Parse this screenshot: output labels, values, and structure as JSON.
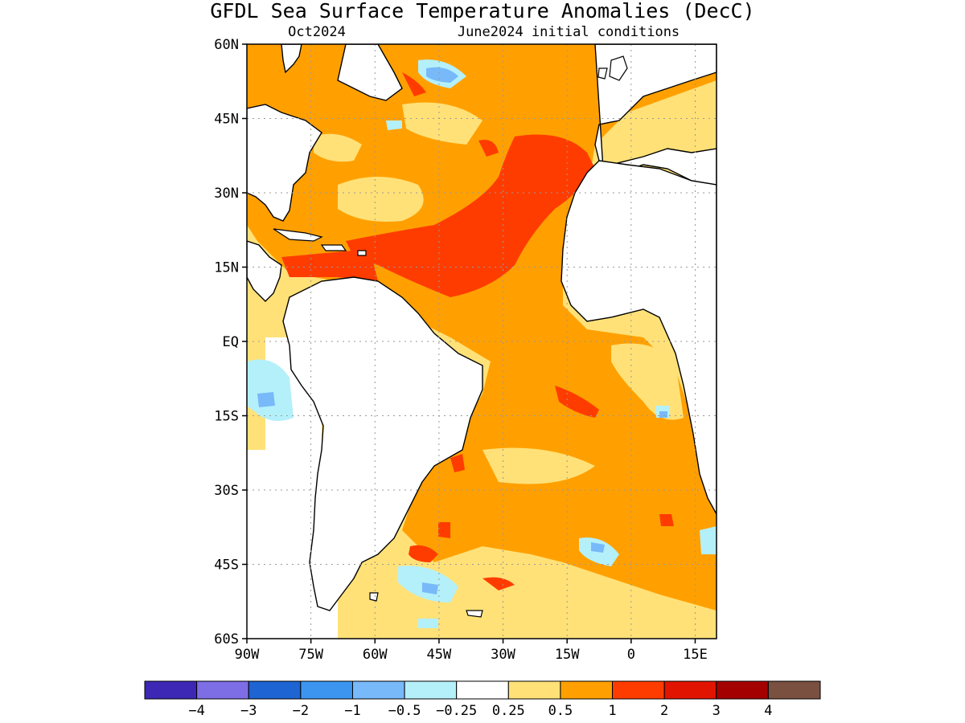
{
  "title": "GFDL Sea Surface Temperature Anomalies (DecC)",
  "subtitle_left": "Oct2024",
  "subtitle_right": "June2024 initial conditions",
  "map": {
    "lon_range": [
      -90,
      20
    ],
    "lat_range": [
      -60,
      60
    ],
    "lat_labels": [
      {
        "value": 60,
        "label": "60N"
      },
      {
        "value": 45,
        "label": "45N"
      },
      {
        "value": 30,
        "label": "30N"
      },
      {
        "value": 15,
        "label": "15N"
      },
      {
        "value": 0,
        "label": "EQ"
      },
      {
        "value": -15,
        "label": "15S"
      },
      {
        "value": -30,
        "label": "30S"
      },
      {
        "value": -45,
        "label": "45S"
      },
      {
        "value": -60,
        "label": "60S"
      }
    ],
    "lon_labels": [
      {
        "value": -90,
        "label": "90W"
      },
      {
        "value": -75,
        "label": "75W"
      },
      {
        "value": -60,
        "label": "60W"
      },
      {
        "value": -45,
        "label": "45W"
      },
      {
        "value": -30,
        "label": "30W"
      },
      {
        "value": -15,
        "label": "15W"
      },
      {
        "value": 0,
        "label": "0"
      },
      {
        "value": 15,
        "label": "15E"
      }
    ]
  },
  "colorbar": {
    "colors": [
      "#3c28b4",
      "#7d6ee6",
      "#1e64d2",
      "#3c96f0",
      "#78b9fa",
      "#b4f0fa",
      "#ffffff",
      "#ffe178",
      "#ffa000",
      "#ff3c00",
      "#e11400",
      "#a50000",
      "#7a5040"
    ],
    "labels": [
      "−4",
      "−3",
      "−2",
      "−1",
      "−0.5",
      "−0.25",
      "0.25",
      "0.5",
      "1",
      "2",
      "3",
      "4"
    ]
  }
}
